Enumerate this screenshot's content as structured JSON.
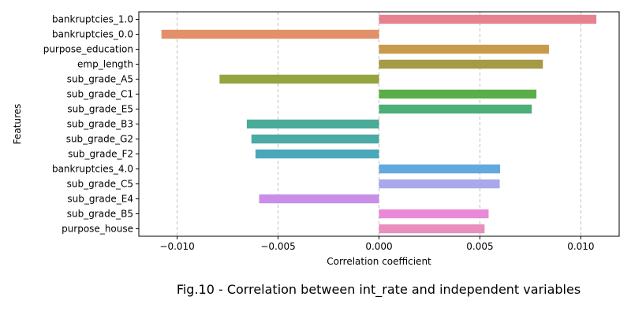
{
  "chart_data": {
    "type": "bar",
    "orientation": "horizontal",
    "categories": [
      "bankruptcies_1.0",
      "bankruptcies_0.0",
      "purpose_education",
      "emp_length",
      "sub_grade_A5",
      "sub_grade_C1",
      "sub_grade_E5",
      "sub_grade_B3",
      "sub_grade_G2",
      "sub_grade_F2",
      "bankruptcies_4.0",
      "sub_grade_C5",
      "sub_grade_E4",
      "sub_grade_B5",
      "purpose_house"
    ],
    "values": [
      0.01077,
      -0.01078,
      0.00842,
      0.00812,
      -0.0079,
      0.0078,
      0.00757,
      -0.00655,
      -0.00632,
      -0.00612,
      0.006,
      0.00598,
      -0.00594,
      0.00543,
      0.00523
    ],
    "colors": [
      "#e8818f",
      "#e2906a",
      "#c99a4c",
      "#a59a46",
      "#94a43f",
      "#5aae4a",
      "#4caf78",
      "#4aab98",
      "#4ba9a6",
      "#4aa8ba",
      "#62a9e0",
      "#a8a8ea",
      "#c98fe8",
      "#e88ad9",
      "#e88fbe"
    ],
    "xlim": [
      -0.0119,
      0.0119
    ],
    "x_ticks": [
      -0.01,
      -0.005,
      0.0,
      0.005,
      0.01
    ],
    "x_tick_labels": [
      "−0.010",
      "−0.005",
      "0.000",
      "0.005",
      "0.010"
    ],
    "xlabel": "Correlation coefficient",
    "ylabel": "Features",
    "grid": "vertical dashed"
  },
  "caption": "Fig.10 - Correlation between int_rate and independent variables"
}
